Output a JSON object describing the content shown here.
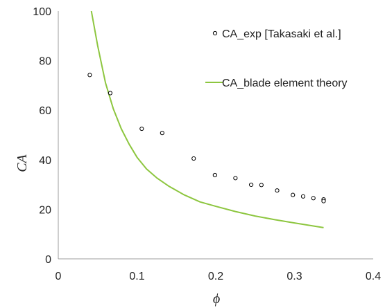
{
  "chart_data": {
    "type": "scatter",
    "xlabel": "ϕ",
    "ylabel": "CA",
    "xlim": [
      0,
      0.4
    ],
    "ylim": [
      0,
      100
    ],
    "x_ticks": [
      "0",
      "0.1",
      "0.2",
      "0.3",
      "0.4"
    ],
    "y_ticks": [
      "0",
      "20",
      "40",
      "60",
      "80",
      "100"
    ],
    "x_tick_values": [
      0,
      0.1,
      0.2,
      0.3,
      0.4
    ],
    "y_tick_values": [
      0,
      20,
      40,
      60,
      80,
      100
    ],
    "grid": false,
    "legend_position": "top-right",
    "series": [
      {
        "name": "CA_exp [Takasaki et al.]",
        "type": "scatter",
        "marker": "open-circle",
        "color": "#000000",
        "x": [
          0.04,
          0.066,
          0.106,
          0.132,
          0.172,
          0.199,
          0.225,
          0.245,
          0.258,
          0.278,
          0.298,
          0.311,
          0.324,
          0.337,
          0.337
        ],
        "y": [
          74.2,
          66.9,
          52.5,
          50.8,
          40.5,
          33.8,
          32.6,
          29.9,
          29.8,
          27.6,
          25.8,
          25.2,
          24.5,
          24.0,
          23.3
        ]
      },
      {
        "name": "CA_blade element theory",
        "type": "line",
        "color": "#8DC63F",
        "x": [
          0.042,
          0.05,
          0.06,
          0.07,
          0.08,
          0.09,
          0.1,
          0.112,
          0.125,
          0.14,
          0.16,
          0.18,
          0.2,
          0.225,
          0.25,
          0.275,
          0.3,
          0.337
        ],
        "y": [
          100,
          86,
          71,
          60.5,
          52.5,
          46.3,
          41,
          36.3,
          32.7,
          29.4,
          25.8,
          23.0,
          21.2,
          19.1,
          17.3,
          15.8,
          14.5,
          12.6
        ]
      }
    ]
  }
}
